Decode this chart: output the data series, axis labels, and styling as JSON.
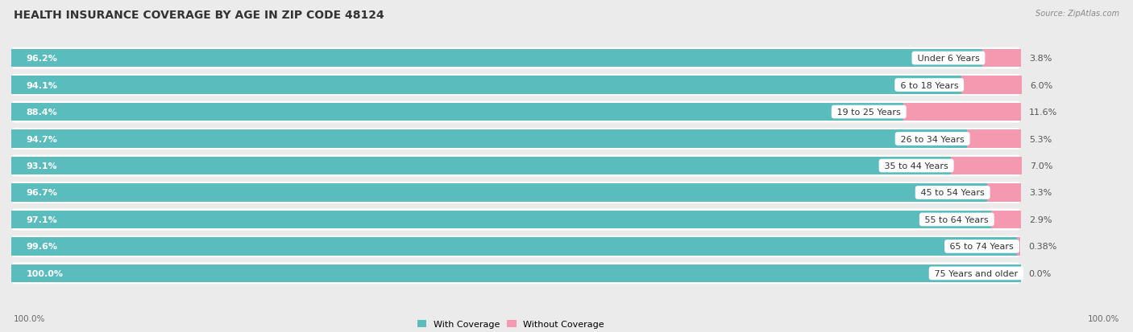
{
  "title": "HEALTH INSURANCE COVERAGE BY AGE IN ZIP CODE 48124",
  "source": "Source: ZipAtlas.com",
  "categories": [
    "Under 6 Years",
    "6 to 18 Years",
    "19 to 25 Years",
    "26 to 34 Years",
    "35 to 44 Years",
    "45 to 54 Years",
    "55 to 64 Years",
    "65 to 74 Years",
    "75 Years and older"
  ],
  "with_coverage": [
    96.2,
    94.1,
    88.4,
    94.7,
    93.1,
    96.7,
    97.1,
    99.6,
    100.0
  ],
  "without_coverage": [
    3.8,
    6.0,
    11.6,
    5.3,
    7.0,
    3.3,
    2.9,
    0.38,
    0.0
  ],
  "with_coverage_labels": [
    "96.2%",
    "94.1%",
    "88.4%",
    "94.7%",
    "93.1%",
    "96.7%",
    "97.1%",
    "99.6%",
    "100.0%"
  ],
  "without_coverage_labels": [
    "3.8%",
    "6.0%",
    "11.6%",
    "5.3%",
    "7.0%",
    "3.3%",
    "2.9%",
    "0.38%",
    "0.0%"
  ],
  "color_with": "#5bbcbe",
  "color_without": "#f599b0",
  "bg_color": "#ebebeb",
  "bar_bg_color": "#ffffff",
  "row_bg_color": "#f5f5f5",
  "title_fontsize": 10,
  "label_fontsize": 8,
  "tick_fontsize": 7.5,
  "legend_fontsize": 8,
  "source_fontsize": 7,
  "bottom_labels": [
    "100.0%",
    "100.0%"
  ]
}
